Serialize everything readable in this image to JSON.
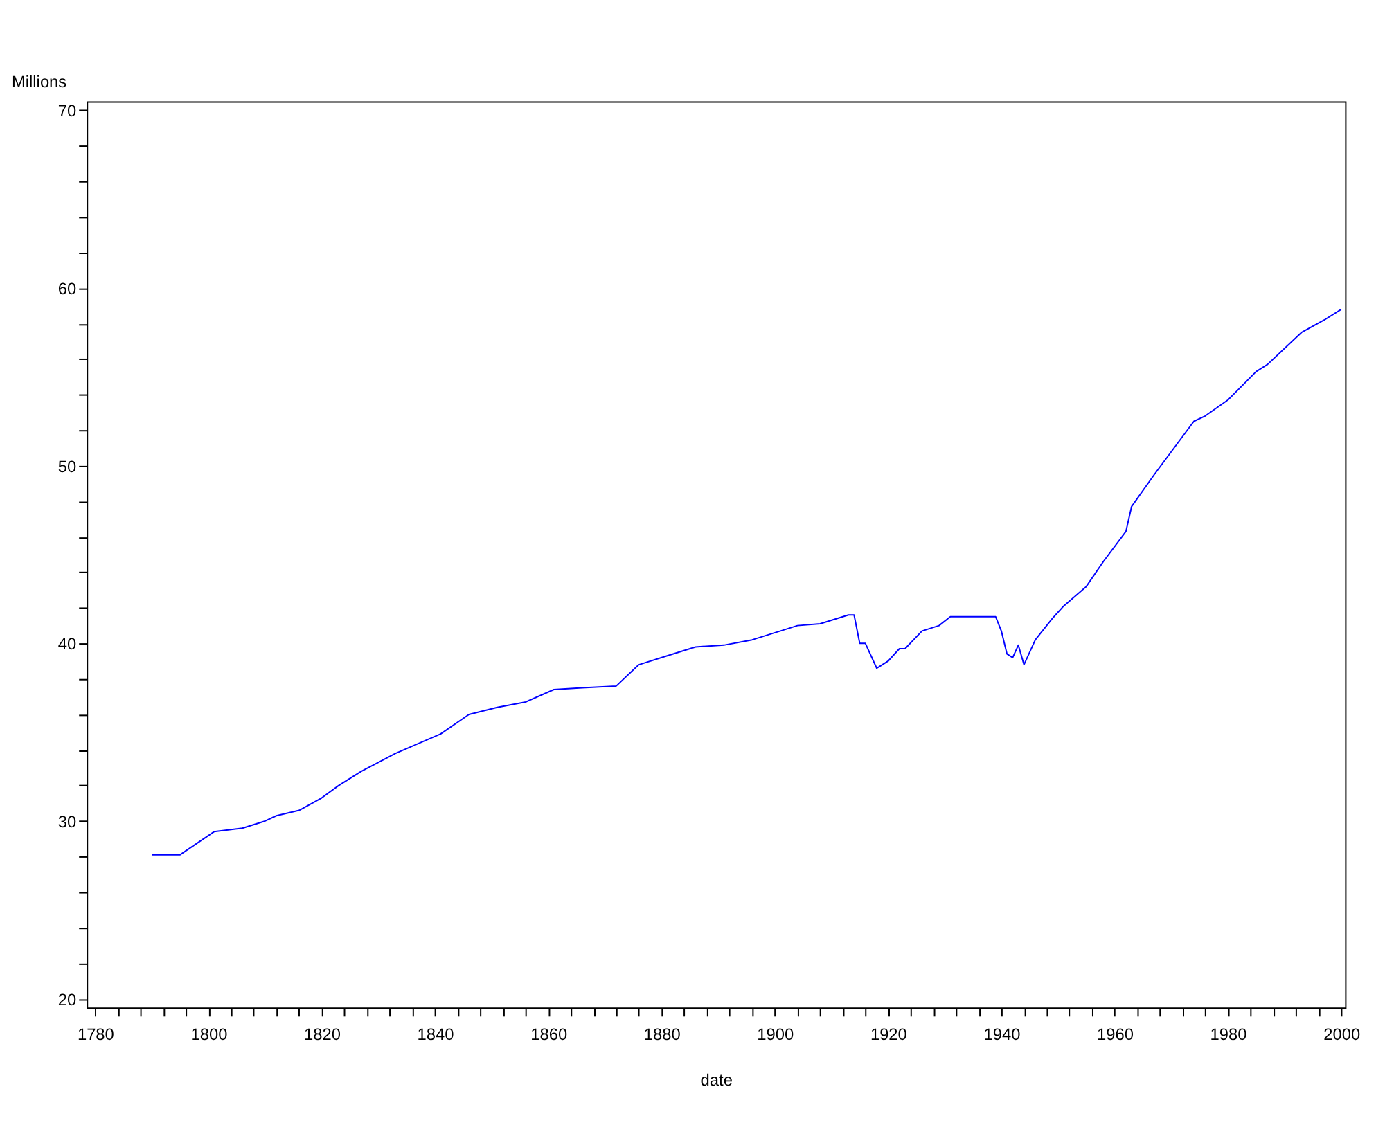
{
  "chart_data": {
    "type": "line",
    "xlabel": "date",
    "ylabel": "Millions",
    "x": [
      1790,
      1795,
      1801,
      1806,
      1810,
      1812,
      1816,
      1820,
      1823,
      1827,
      1833,
      1841,
      1846,
      1851,
      1856,
      1861,
      1866,
      1872,
      1876,
      1881,
      1886,
      1891,
      1896,
      1901,
      1904,
      1908,
      1913,
      1914,
      1915,
      1916,
      1918,
      1920,
      1922,
      1923,
      1926,
      1929,
      1931,
      1933,
      1934,
      1936,
      1939,
      1940,
      1941,
      1942,
      1943,
      1944,
      1946,
      1949,
      1951,
      1955,
      1958,
      1962,
      1963,
      1967,
      1974,
      1976,
      1980,
      1985,
      1987,
      1993,
      1997,
      2000
    ],
    "series": [
      {
        "color": "#0000ff",
        "values": [
          28.1,
          28.1,
          29.4,
          29.6,
          30.0,
          30.3,
          30.6,
          31.3,
          32.0,
          32.8,
          33.8,
          34.9,
          36.0,
          36.4,
          36.7,
          37.4,
          37.5,
          37.6,
          38.8,
          39.3,
          39.8,
          39.9,
          40.2,
          40.7,
          41.0,
          41.1,
          41.6,
          41.6,
          40.0,
          40.0,
          38.6,
          39.0,
          39.7,
          39.7,
          40.7,
          41.0,
          41.5,
          41.5,
          41.5,
          41.5,
          41.5,
          40.7,
          39.4,
          39.2,
          39.9,
          38.8,
          40.2,
          41.4,
          42.1,
          43.2,
          44.6,
          46.3,
          47.7,
          49.5,
          52.5,
          52.8,
          53.7,
          55.3,
          55.7,
          57.5,
          58.2,
          58.8
        ]
      }
    ],
    "xlim": [
      1778.5,
      2000.7
    ],
    "ylim": [
      19.5,
      70.5
    ],
    "xticks": [
      1780,
      {
        "value": 1784,
        "label": null
      },
      {
        "value": 1788,
        "label": null
      },
      {
        "value": 1792,
        "label": null
      },
      {
        "value": 1796,
        "label": null
      },
      1800,
      {
        "value": 1804,
        "label": null
      },
      {
        "value": 1808,
        "label": null
      },
      {
        "value": 1812,
        "label": null
      },
      {
        "value": 1816,
        "label": null
      },
      1820,
      {
        "value": 1824,
        "label": null
      },
      {
        "value": 1828,
        "label": null
      },
      {
        "value": 1832,
        "label": null
      },
      {
        "value": 1836,
        "label": null
      },
      1840,
      {
        "value": 1844,
        "label": null
      },
      {
        "value": 1848,
        "label": null
      },
      {
        "value": 1852,
        "label": null
      },
      {
        "value": 1856,
        "label": null
      },
      1860,
      {
        "value": 1864,
        "label": null
      },
      {
        "value": 1868,
        "label": null
      },
      {
        "value": 1872,
        "label": null
      },
      {
        "value": 1876,
        "label": null
      },
      1880,
      {
        "value": 1884,
        "label": null
      },
      {
        "value": 1888,
        "label": null
      },
      {
        "value": 1892,
        "label": null
      },
      {
        "value": 1896,
        "label": null
      },
      1900,
      {
        "value": 1904,
        "label": null
      },
      {
        "value": 1908,
        "label": null
      },
      {
        "value": 1912,
        "label": null
      },
      {
        "value": 1916,
        "label": null
      },
      1920,
      {
        "value": 1924,
        "label": null
      },
      {
        "value": 1928,
        "label": null
      },
      {
        "value": 1932,
        "label": null
      },
      {
        "value": 1936,
        "label": null
      },
      1940,
      {
        "value": 1944,
        "label": null
      },
      {
        "value": 1948,
        "label": null
      },
      {
        "value": 1952,
        "label": null
      },
      {
        "value": 1956,
        "label": null
      },
      1960,
      {
        "value": 1964,
        "label": null
      },
      {
        "value": 1968,
        "label": null
      },
      {
        "value": 1972,
        "label": null
      },
      {
        "value": 1976,
        "label": null
      },
      1980,
      {
        "value": 1984,
        "label": null
      },
      {
        "value": 1988,
        "label": null
      },
      {
        "value": 1992,
        "label": null
      },
      {
        "value": 1996,
        "label": null
      },
      2000
    ],
    "yticks": [
      20,
      {
        "value": 22,
        "label": null
      },
      {
        "value": 24,
        "label": null
      },
      {
        "value": 26,
        "label": null
      },
      {
        "value": 28,
        "label": null
      },
      30,
      {
        "value": 32,
        "label": null
      },
      {
        "value": 34,
        "label": null
      },
      {
        "value": 36,
        "label": null
      },
      {
        "value": 38,
        "label": null
      },
      40,
      {
        "value": 42,
        "label": null
      },
      {
        "value": 44,
        "label": null
      },
      {
        "value": 46,
        "label": null
      },
      {
        "value": 48,
        "label": null
      },
      50,
      {
        "value": 52,
        "label": null
      },
      {
        "value": 54,
        "label": null
      },
      {
        "value": 56,
        "label": null
      },
      {
        "value": 58,
        "label": null
      },
      60,
      {
        "value": 62,
        "label": null
      },
      {
        "value": 64,
        "label": null
      },
      {
        "value": 66,
        "label": null
      },
      {
        "value": 68,
        "label": null
      },
      70
    ],
    "grid": false,
    "legend": false,
    "marker": "none",
    "line_style": "solid"
  }
}
